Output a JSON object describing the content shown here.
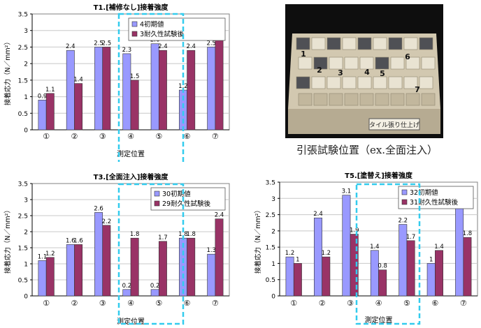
{
  "chart_data": [
    {
      "type": "bar",
      "title": "T1.[補修なし]接着強度",
      "xlabel": "測定位置",
      "ylabel": "接着応力（N／mm²）",
      "categories": [
        "①",
        "②",
        "③",
        "④",
        "⑤",
        "⑥",
        "⑦"
      ],
      "ylim": [
        0,
        3.5
      ],
      "yticks": [
        "0",
        "0.5",
        "1",
        "1.5",
        "2",
        "2.5",
        "3",
        "3.5"
      ],
      "grid": true,
      "legend_position": "top-right",
      "series": [
        {
          "name": "4初期値",
          "values": [
            0.9,
            2.4,
            2.5,
            2.3,
            2.6,
            1.2,
            2.5
          ],
          "labels": [
            "0.9",
            "2.4",
            "2.5",
            "2.3",
            "2.6",
            "1.2",
            "2.5"
          ]
        },
        {
          "name": "3耐久性試験後",
          "values": [
            1.1,
            1.4,
            2.5,
            1.5,
            2.4,
            2.4,
            2.7
          ],
          "labels": [
            "1.1",
            "1.4",
            "2.5",
            "1.5",
            "2.4",
            "2.4",
            "2.7"
          ]
        }
      ]
    },
    {
      "type": "bar",
      "title": "T3.[全面注入]接着強度",
      "xlabel": "測定位置",
      "ylabel": "接着応力（N／mm²）",
      "categories": [
        "①",
        "②",
        "③",
        "④",
        "⑤",
        "⑥",
        "⑦"
      ],
      "ylim": [
        0,
        3.5
      ],
      "yticks": [
        "0",
        "0.5",
        "1",
        "1.5",
        "2",
        "2.5",
        "3",
        "3.5"
      ],
      "grid": true,
      "legend_position": "top-right",
      "series": [
        {
          "name": "30初期値",
          "values": [
            1.1,
            1.6,
            2.6,
            0.2,
            0.2,
            1.8,
            1.3
          ],
          "labels": [
            "1.1",
            "1.6",
            "2.6",
            "0.2",
            "0.2",
            "1.8",
            "1.3"
          ]
        },
        {
          "name": "29耐久性試験後",
          "values": [
            1.2,
            1.6,
            2.2,
            1.8,
            1.7,
            1.8,
            2.4
          ],
          "labels": [
            "1.2",
            "1.6",
            "2.2",
            "1.8",
            "1.7",
            "1.8",
            "2.4"
          ]
        }
      ]
    },
    {
      "type": "bar",
      "title": "T5.[塗替え]接着強度",
      "xlabel": "測定位置",
      "ylabel": "接着応力（N／mm²）",
      "categories": [
        "①",
        "②",
        "③",
        "④",
        "⑤",
        "⑥",
        "⑦"
      ],
      "ylim": [
        0,
        3.5
      ],
      "yticks": [
        "0",
        "0.5",
        "1",
        "1.5",
        "2",
        "2.5",
        "3",
        "3.5"
      ],
      "grid": true,
      "legend_position": "top-right",
      "series": [
        {
          "name": "32初期値",
          "values": [
            1.2,
            2.4,
            3.1,
            1.4,
            2.2,
            1.0,
            2.8
          ],
          "labels": [
            "1.2",
            "2.4",
            "3.1",
            "1.4",
            "2.2",
            "1",
            "2.8"
          ]
        },
        {
          "name": "31耐久性試験後",
          "values": [
            1.0,
            1.2,
            1.9,
            0.8,
            1.7,
            1.4,
            1.8
          ],
          "labels": [
            "1",
            "1.2",
            "1.9",
            "0.8",
            "1.7",
            "1.4",
            "1.8"
          ]
        }
      ]
    }
  ],
  "colors": {
    "series_a": "#9999ff",
    "series_b": "#993366",
    "highlight_box": "#33ccee",
    "grid": "#c8c8c8",
    "board": "#c9bfa8"
  },
  "photo": {
    "tile_numbers": [
      "1",
      "2",
      "3",
      "4",
      "5",
      "6",
      "7"
    ],
    "plate_text": "タイル張り仕上げ"
  },
  "caption": "引張試験位置（ex.全面注入）"
}
